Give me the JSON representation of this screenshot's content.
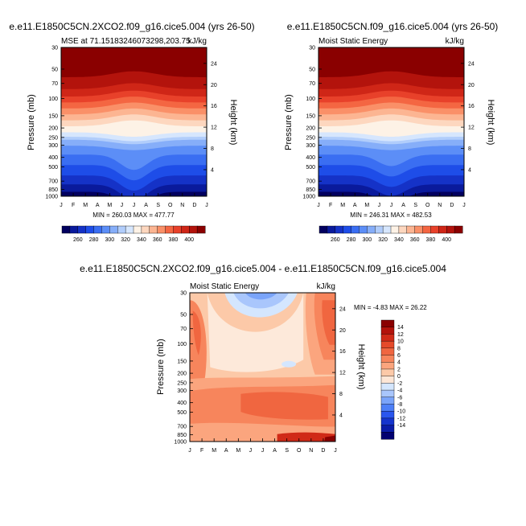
{
  "colors": {
    "abs_scale": [
      "#02005f",
      "#0a1a9c",
      "#1532c7",
      "#1e4de8",
      "#3a6ef2",
      "#5c8ef7",
      "#86aef9",
      "#b1cdfb",
      "#d6e6fd",
      "#fdf2e6",
      "#fdd7bf",
      "#fcb592",
      "#fa9068",
      "#f46642",
      "#e8412a",
      "#cf2617",
      "#b3130c",
      "#8a0000"
    ],
    "diff_scale": [
      "#020070",
      "#0a1ca8",
      "#1534cd",
      "#2a56ee",
      "#4d7ff7",
      "#7aa4fa",
      "#a9c6fc",
      "#d4e6fe",
      "#fde6d6",
      "#fcc9a8",
      "#fba57e",
      "#f7855c",
      "#f06640",
      "#e54a2a",
      "#d02a17",
      "#b3120b",
      "#8a0000"
    ]
  },
  "chart_data": [
    {
      "id": "top-left",
      "type": "heatmap",
      "title": "e.e11.E1850C5CN.2XCO2.f09_g16.cice5.004 (yrs 26-50)",
      "subtitle_left": "MSE at 71.15183246073298,203.75",
      "subtitle_right": "kJ/kg",
      "ylabel": "Pressure (mb)",
      "ylabel_right": "Height (km)",
      "x_ticks": [
        "J",
        "F",
        "M",
        "A",
        "M",
        "J",
        "J",
        "A",
        "S",
        "O",
        "N",
        "D",
        "J"
      ],
      "y_ticks": [
        "30",
        "50",
        "70",
        "100",
        "150",
        "200",
        "250",
        "300",
        "400",
        "500",
        "700",
        "850",
        "1000"
      ],
      "y_ticks_right": [
        "24",
        "20",
        "16",
        "12",
        "8",
        "4"
      ],
      "stats": "MIN = 260.03 MAX = 477.77",
      "colorbar_labels": [
        "260",
        "280",
        "300",
        "320",
        "340",
        "360",
        "380",
        "400"
      ],
      "dip": 4
    },
    {
      "id": "top-right",
      "type": "heatmap",
      "title": "e.e11.E1850C5CN.f09_g16.cice5.004 (yrs 26-50)",
      "subtitle_left": "Moist Static Energy",
      "subtitle_right": "kJ/kg",
      "ylabel": "Pressure (mb)",
      "ylabel_right": "Height (km)",
      "x_ticks": [
        "J",
        "F",
        "M",
        "A",
        "M",
        "J",
        "J",
        "A",
        "S",
        "O",
        "N",
        "D",
        "J"
      ],
      "y_ticks": [
        "30",
        "50",
        "70",
        "100",
        "150",
        "200",
        "250",
        "300",
        "400",
        "500",
        "700",
        "850",
        "1000"
      ],
      "y_ticks_right": [
        "24",
        "20",
        "16",
        "12",
        "8",
        "4"
      ],
      "stats": "MIN = 246.31 MAX = 482.53",
      "colorbar_labels": [
        "260",
        "280",
        "300",
        "320",
        "340",
        "360",
        "380",
        "400"
      ],
      "dip": 3
    },
    {
      "id": "bottom",
      "type": "heatmap",
      "title": "e.e11.E1850C5CN.2XCO2.f09_g16.cice5.004 - e.e11.E1850C5CN.f09_g16.cice5.004",
      "subtitle_left": "Moist Static Energy",
      "subtitle_right": "kJ/kg",
      "ylabel": "Pressure (mb)",
      "ylabel_right": "Height (km)",
      "x_ticks": [
        "J",
        "F",
        "M",
        "A",
        "M",
        "J",
        "J",
        "A",
        "S",
        "O",
        "N",
        "D",
        "J"
      ],
      "y_ticks": [
        "30",
        "50",
        "70",
        "100",
        "150",
        "200",
        "250",
        "300",
        "400",
        "500",
        "700",
        "850",
        "1000"
      ],
      "y_ticks_right": [
        "24",
        "20",
        "16",
        "12",
        "8",
        "4"
      ],
      "stats": "MIN =  -4.83 MAX =  26.22",
      "colorbar_labels": [
        "14",
        "12",
        "10",
        "8",
        "6",
        "4",
        "2",
        "0",
        "-2",
        "-4",
        "-6",
        "-8",
        "-10",
        "-12",
        "-14"
      ]
    }
  ]
}
